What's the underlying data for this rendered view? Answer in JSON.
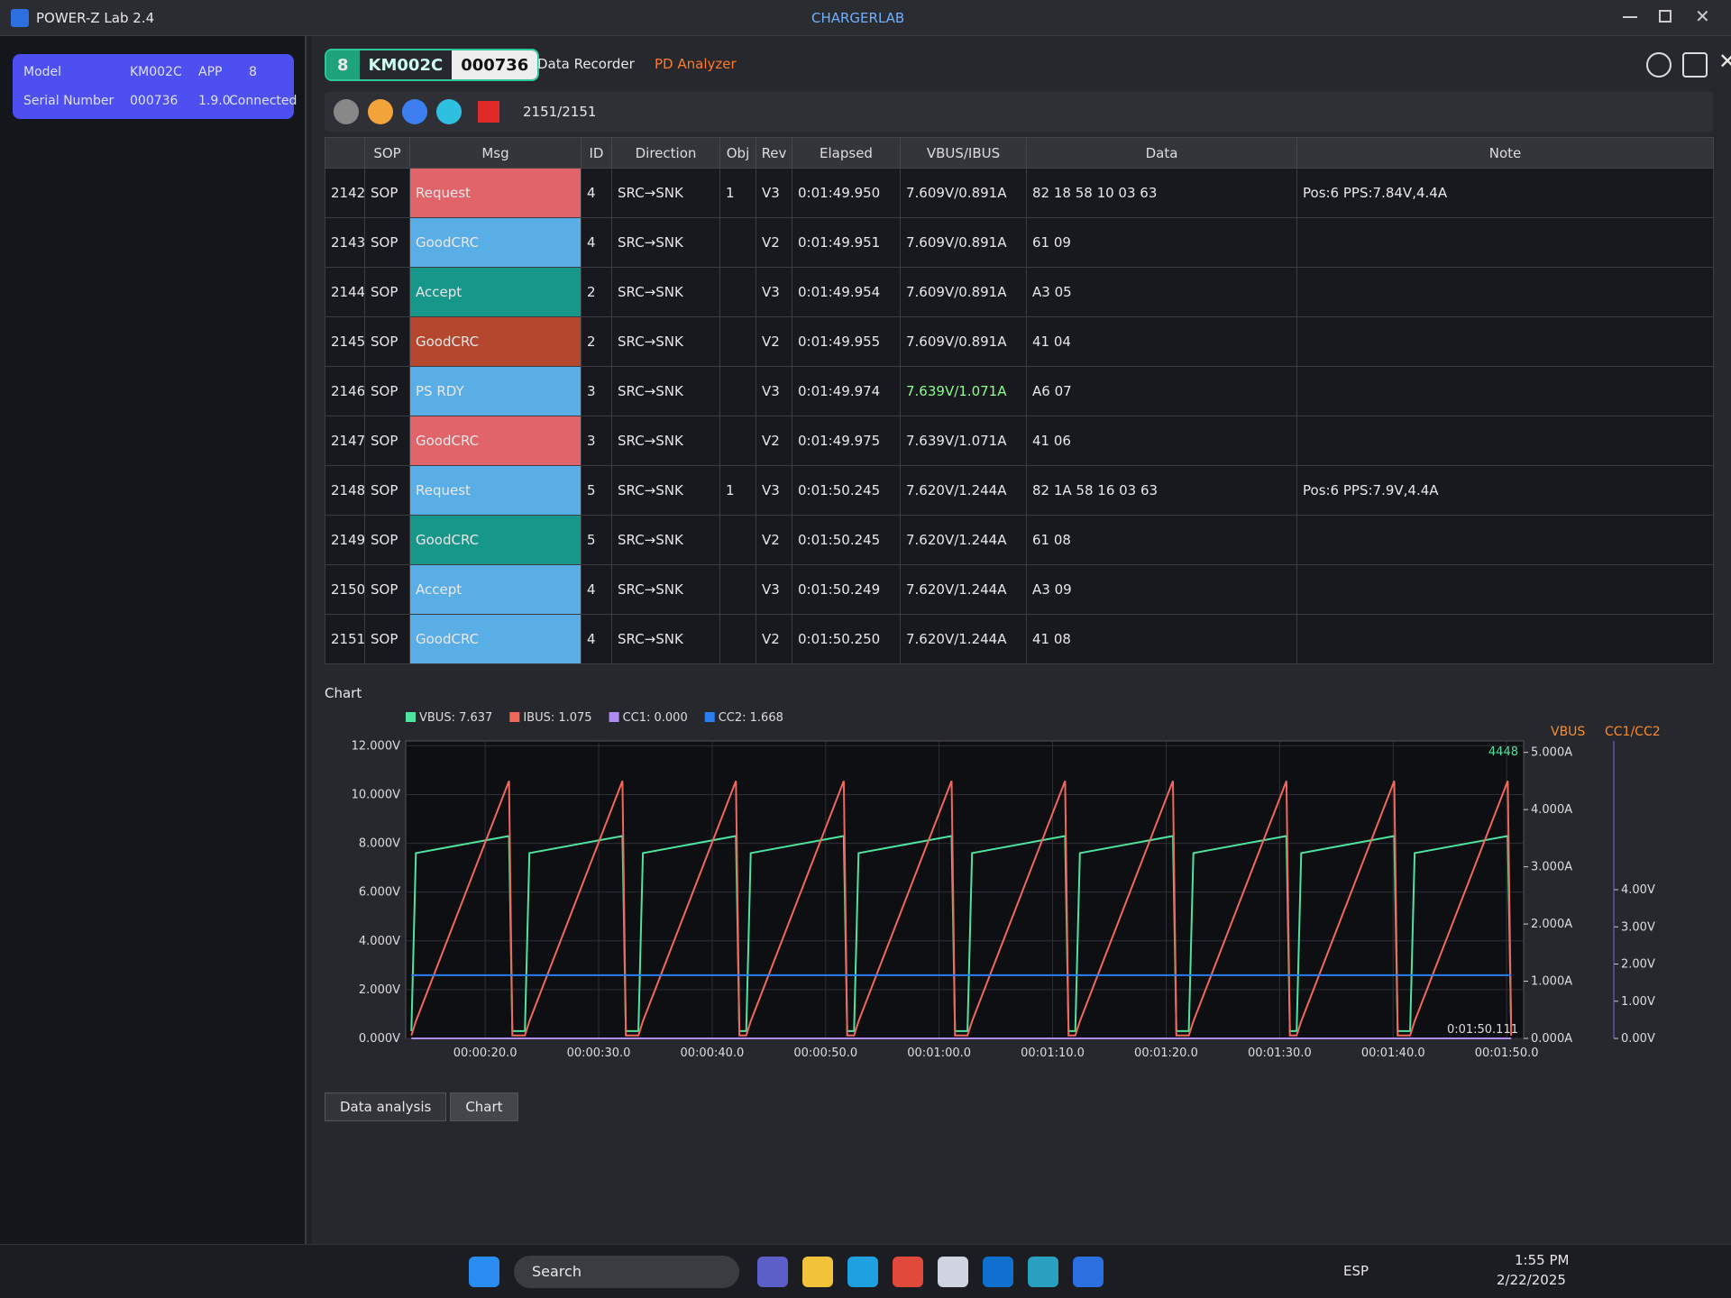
{
  "window": {
    "title": "POWER-Z Lab 2.4",
    "brand": "CHARGERLAB"
  },
  "device": {
    "rows": [
      [
        "Model",
        "KM002C",
        "APP",
        "8"
      ],
      [
        "Serial Number",
        "000736",
        "1.9.0",
        "Connected"
      ]
    ]
  },
  "header": {
    "port": "8",
    "model": "KM002C",
    "serial": "000736",
    "tabs": [
      "Data Recorder",
      "PD Analyzer"
    ]
  },
  "toolbar": {
    "count": "2151/2151"
  },
  "table": {
    "columns": [
      "SOP",
      "Msg",
      "ID",
      "Direction",
      "Obj",
      "Rev",
      "Elapsed",
      "VBUS/IBUS",
      "Data",
      "Note"
    ],
    "rows": [
      [
        "2142",
        "SOP",
        "Request",
        "4",
        "SRC→SNK",
        "1",
        "V3",
        "0:01:49.950",
        "7.609V/0.891A",
        "82 18 58 10 03 63",
        "Pos:6 PPS:7.84V,4.4A"
      ],
      [
        "2143",
        "SOP",
        "GoodCRC",
        "4",
        "SRC→SNK",
        null,
        "V2",
        "0:01:49.951",
        "7.609V/0.891A",
        "61 09",
        null
      ],
      [
        "2144",
        "SOP",
        "Accept",
        "2",
        "SRC→SNK",
        null,
        "V3",
        "0:01:49.954",
        "7.609V/0.891A",
        "A3 05",
        null
      ],
      [
        "2145",
        "SOP",
        "GoodCRC",
        "2",
        "SRC→SNK",
        null,
        "V2",
        "0:01:49.955",
        "7.609V/0.891A",
        "41 04",
        null
      ],
      [
        "2146",
        "SOP",
        "PS RDY",
        "3",
        "SRC→SNK",
        null,
        "V3",
        "0:01:49.974",
        "7.639V/1.071A",
        "A6 07",
        null
      ],
      [
        "2147",
        "SOP",
        "GoodCRC",
        "3",
        "SRC→SNK",
        null,
        "V2",
        "0:01:49.975",
        "7.639V/1.071A",
        "41 06",
        null
      ],
      [
        "2148",
        "SOP",
        "Request",
        "5",
        "SRC→SNK",
        "1",
        "V3",
        "0:01:50.245",
        "7.620V/1.244A",
        "82 1A 58 16 03 63",
        "Pos:6 PPS:7.9V,4.4A"
      ],
      [
        "2149",
        "SOP",
        "GoodCRC",
        "5",
        "SRC→SNK",
        null,
        "V2",
        "0:01:50.245",
        "7.620V/1.244A",
        "61 08",
        null
      ],
      [
        "2150",
        "SOP",
        "Accept",
        "4",
        "SRC→SNK",
        null,
        "V3",
        "0:01:50.249",
        "7.620V/1.244A",
        "A3 09",
        null
      ],
      [
        "2151",
        "SOP",
        "GoodCRC",
        "4",
        "SRC→SNK",
        null,
        "V2",
        "0:01:50.250",
        "7.620V/1.244A",
        "41 08",
        null
      ]
    ],
    "msg_colors": [
      "#e0646a",
      "#5aaee6",
      "#17978a",
      "#b4472e",
      "#5aaee6",
      "#e0646a",
      "#5aaee6",
      "#17978a",
      "#5aaee6",
      "#5aaee6"
    ],
    "highlight_row": 4,
    "highlight_color": "#8cff8c"
  },
  "chart_panel": {
    "label": "Chart",
    "chart_data": {
      "type": "line",
      "x": [
        13.5,
        13.9,
        22.1,
        22.4,
        23.5,
        23.9,
        32.1,
        32.4,
        33.5,
        33.9,
        42.1,
        42.4,
        43,
        43.4,
        51.6,
        51.9,
        52.5,
        52.9,
        61.1,
        61.4,
        62.5,
        62.9,
        71.1,
        71.4,
        72,
        72.4,
        80.6,
        80.9,
        82,
        82.4,
        90.6,
        90.9,
        91.5,
        91.9,
        100.1,
        100.4,
        101.5,
        101.9,
        110.1,
        110.4
      ],
      "xlim": [
        13,
        111.5
      ],
      "xticks": [
        {
          "value": 20,
          "label": "00:00:20.0"
        },
        {
          "value": 30,
          "label": "00:00:30.0"
        },
        {
          "value": 40,
          "label": "00:00:40.0"
        },
        {
          "value": 50,
          "label": "00:00:50.0"
        },
        {
          "value": 60,
          "label": "00:01:00.0"
        },
        {
          "value": 70,
          "label": "00:01:10.0"
        },
        {
          "value": 80,
          "label": "00:01:20.0"
        },
        {
          "value": 90,
          "label": "00:01:30.0"
        },
        {
          "value": 100,
          "label": "00:01:40.0"
        },
        {
          "value": 110,
          "label": "00:01:50.0"
        }
      ],
      "ylim": [
        0,
        12.2
      ],
      "yticks": [
        {
          "value": 0,
          "label": "0.000V"
        },
        {
          "value": 2,
          "label": "2.000V"
        },
        {
          "value": 4,
          "label": "4.000V"
        },
        {
          "value": 6,
          "label": "6.000V"
        },
        {
          "value": 8,
          "label": "8.000V"
        },
        {
          "value": 10,
          "label": "10.000V"
        },
        {
          "value": 12,
          "label": "12.000V"
        }
      ],
      "y2lim": [
        0,
        5.2
      ],
      "y2ticks": [
        {
          "value": 0,
          "label": "0.000A"
        },
        {
          "value": 1,
          "label": "1.000A"
        },
        {
          "value": 2,
          "label": "2.000A"
        },
        {
          "value": 3,
          "label": "3.000A"
        },
        {
          "value": 4,
          "label": "4.000A"
        },
        {
          "value": 5,
          "label": "5.000A"
        }
      ],
      "y2_title": "VBUS",
      "y3lim": [
        0,
        8
      ],
      "y3ticks": [
        {
          "value": 0,
          "label": "0.00V"
        },
        {
          "value": 1,
          "label": "1.00V"
        },
        {
          "value": 2,
          "label": "2.00V"
        },
        {
          "value": 3,
          "label": "3.00V"
        },
        {
          "value": 4,
          "label": "4.00V"
        }
      ],
      "y3_title": "CC1/CC2",
      "grid": true,
      "series": [
        {
          "name": "VBUS: 7.637",
          "color": "#4fe3a0",
          "axis": "y",
          "values": [
            0.3,
            7.6,
            8.3,
            0.3,
            0.3,
            7.6,
            8.3,
            0.3,
            0.3,
            7.6,
            8.3,
            0.3,
            0.3,
            7.6,
            8.3,
            0.3,
            0.3,
            7.6,
            8.3,
            0.3,
            0.3,
            7.6,
            8.3,
            0.3,
            0.3,
            7.6,
            8.3,
            0.3,
            0.3,
            7.6,
            8.3,
            0.3,
            0.3,
            7.6,
            8.3,
            0.3,
            0.3,
            7.6,
            8.3,
            0.3
          ]
        },
        {
          "name": "IBUS: 1.075",
          "color": "#f0685a",
          "axis": "y2",
          "values": [
            0.05,
            0.3,
            4.5,
            0.05,
            0.05,
            0.3,
            4.5,
            0.05,
            0.05,
            0.3,
            4.5,
            0.05,
            0.05,
            0.3,
            4.5,
            0.05,
            0.05,
            0.3,
            4.5,
            0.05,
            0.05,
            0.3,
            4.5,
            0.05,
            0.05,
            0.3,
            4.5,
            0.05,
            0.05,
            0.3,
            4.5,
            0.05,
            0.05,
            0.3,
            4.5,
            0.05,
            0.05,
            0.3,
            4.5,
            0.05
          ]
        },
        {
          "name": "CC1: 0.000",
          "color": "#b08cf0",
          "axis": "y3",
          "values": [
            0,
            0,
            0,
            0,
            0,
            0,
            0,
            0,
            0,
            0,
            0,
            0,
            0,
            0,
            0,
            0,
            0,
            0,
            0,
            0,
            0,
            0,
            0,
            0,
            0,
            0,
            0,
            0,
            0,
            0,
            0,
            0,
            0,
            0,
            0,
            0,
            0,
            0,
            0,
            0
          ]
        },
        {
          "name": "CC2: 1.668",
          "color": "#2a7ef0",
          "axis": "y3",
          "values": [
            1.7,
            1.7,
            1.7,
            1.7,
            1.7,
            1.7,
            1.7,
            1.7,
            1.7,
            1.7,
            1.7,
            1.7,
            1.7,
            1.7,
            1.7,
            1.7,
            1.7,
            1.7,
            1.7,
            1.7,
            1.7,
            1.7,
            1.7,
            1.7,
            1.7,
            1.7,
            1.7,
            1.7,
            1.7,
            1.7,
            1.7,
            1.7,
            1.7,
            1.7,
            1.7,
            1.7,
            1.7,
            1.7,
            1.7,
            1.7
          ]
        }
      ],
      "annotations": [
        "4448",
        "0:01:50.111"
      ]
    }
  },
  "bottom_tabs": [
    "Data analysis",
    "Chart"
  ],
  "taskbar": {
    "search": "Search",
    "lang": "ESP",
    "time": "1:55 PM",
    "date": "2/22/2025"
  }
}
